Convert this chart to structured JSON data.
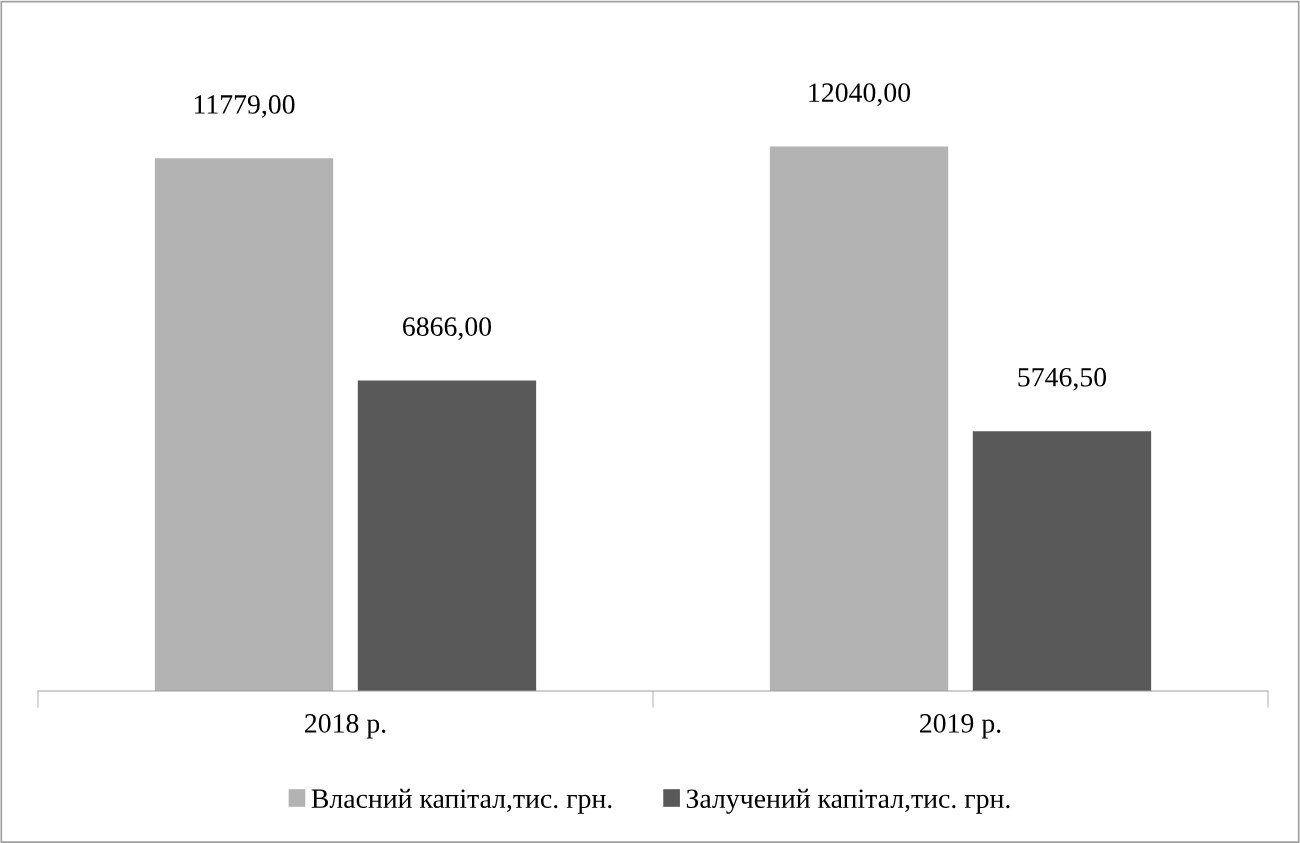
{
  "chart_data": {
    "type": "bar",
    "categories": [
      "2018 р.",
      "2019 р."
    ],
    "series": [
      {
        "name": "Власний капітал,тис. грн.",
        "color": "#b3b3b3",
        "values": [
          11779.0,
          12040.0
        ],
        "value_labels": [
          "11779,00",
          "12040,00"
        ]
      },
      {
        "name": "Залучений капітал,тис. грн.",
        "color": "#595959",
        "values": [
          6866.0,
          5746.5
        ],
        "value_labels": [
          "6866,00",
          "5746,50"
        ]
      }
    ],
    "grid": false,
    "legend": "bottom"
  }
}
